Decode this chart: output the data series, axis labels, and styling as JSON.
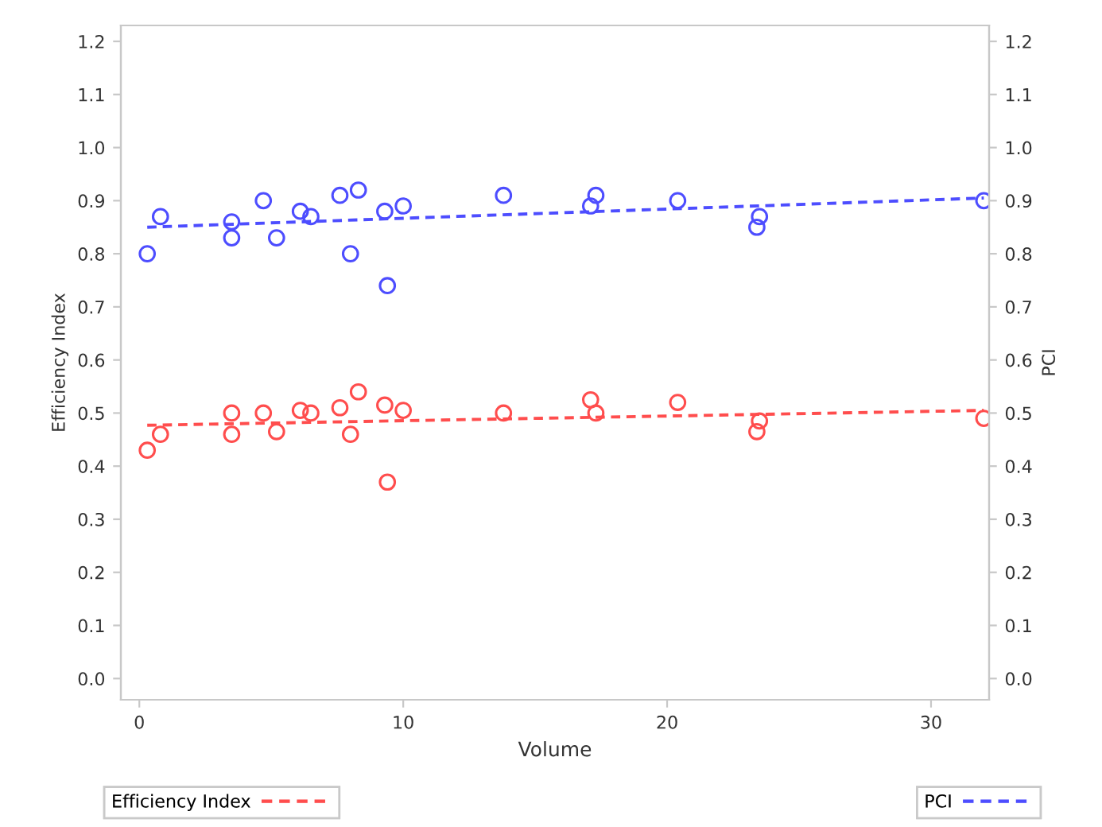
{
  "chart_data": {
    "type": "scatter",
    "xlabel": "Volume",
    "ylabel": "Efficiency Index",
    "y2label": "PCI",
    "legend": "bottom",
    "grid": false,
    "marker": "circle",
    "xlim": [
      -0.7,
      32.2
    ],
    "xticks": [
      0,
      10,
      20,
      30
    ],
    "ylim": [
      -0.04,
      1.23
    ],
    "yticks": [
      {
        "value": 0,
        "label": "0.0"
      },
      {
        "value": 0.1,
        "label": "0.1"
      },
      {
        "value": 0.2,
        "label": "0.2"
      },
      {
        "value": 0.3,
        "label": "0.3"
      },
      {
        "value": 0.4,
        "label": "0.4"
      },
      {
        "value": 0.5,
        "label": "0.5"
      },
      {
        "value": 0.6,
        "label": "0.6"
      },
      {
        "value": 0.7,
        "label": "0.7"
      },
      {
        "value": 0.8,
        "label": "0.8"
      },
      {
        "value": 0.9,
        "label": "0.9"
      },
      {
        "value": 1.0,
        "label": "1.0"
      },
      {
        "value": 1.1,
        "label": "1.1"
      },
      {
        "value": 1.2,
        "label": "1.2"
      }
    ],
    "y2lim": [
      -0.04,
      1.23
    ],
    "y2ticks": [
      {
        "value": 0,
        "label": "0.0"
      },
      {
        "value": 0.1,
        "label": "0.1"
      },
      {
        "value": 0.2,
        "label": "0.2"
      },
      {
        "value": 0.3,
        "label": "0.3"
      },
      {
        "value": 0.4,
        "label": "0.4"
      },
      {
        "value": 0.5,
        "label": "0.5"
      },
      {
        "value": 0.6,
        "label": "0.6"
      },
      {
        "value": 0.7,
        "label": "0.7"
      },
      {
        "value": 0.8,
        "label": "0.8"
      },
      {
        "value": 0.9,
        "label": "0.9"
      },
      {
        "value": 1.0,
        "label": "1.0"
      },
      {
        "value": 1.1,
        "label": "1.1"
      },
      {
        "value": 1.2,
        "label": "1.2"
      }
    ],
    "series": [
      {
        "color": "#ff4d4d",
        "x": [
          0.3,
          0.8,
          3.5,
          3.5,
          4.7,
          5.2,
          6.1,
          6.5,
          7.6,
          8.0,
          8.3,
          9.3,
          9.4,
          10.0,
          13.8,
          17.1,
          17.3,
          20.4,
          23.4,
          23.5,
          32.0
        ],
        "values": [
          0.43,
          0.46,
          0.5,
          0.46,
          0.5,
          0.465,
          0.505,
          0.5,
          0.51,
          0.46,
          0.54,
          0.515,
          0.37,
          0.505,
          0.5,
          0.525,
          0.5,
          0.52,
          0.465,
          0.485,
          0.49
        ]
      },
      {
        "color": "#4d4dff",
        "axis": "y2",
        "x": [
          0.3,
          0.8,
          3.5,
          3.5,
          4.7,
          5.2,
          6.1,
          6.5,
          7.6,
          8.0,
          8.3,
          9.3,
          9.4,
          10.0,
          13.8,
          17.1,
          17.3,
          20.4,
          23.4,
          23.5,
          32.0
        ],
        "values": [
          0.8,
          0.87,
          0.83,
          0.86,
          0.9,
          0.83,
          0.88,
          0.87,
          0.91,
          0.8,
          0.92,
          0.88,
          0.74,
          0.89,
          0.91,
          0.89,
          0.91,
          0.9,
          0.85,
          0.87,
          0.9
        ]
      },
      {
        "type": "line",
        "name": "Efficiency Index",
        "color": "#ff4d4d",
        "marker": "none",
        "line_style": "dashed",
        "x": [
          0.3,
          32.0
        ],
        "values": [
          0.477,
          0.505
        ]
      },
      {
        "type": "line",
        "name": "PCI",
        "color": "#4d4dff",
        "marker": "none",
        "line_style": "dashed",
        "axis": "y2",
        "x": [
          0.3,
          32.0
        ],
        "values": [
          0.85,
          0.905
        ]
      }
    ]
  }
}
